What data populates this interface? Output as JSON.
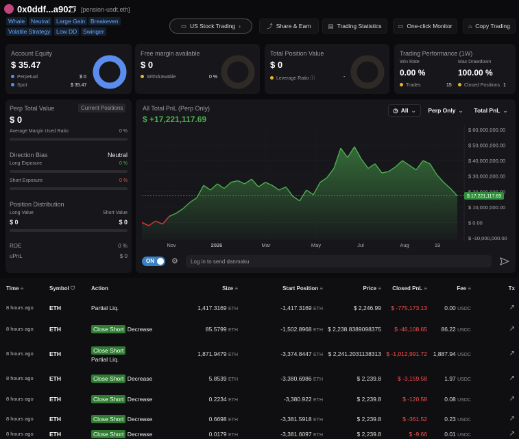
{
  "header": {
    "address": "0x0ddf...a902",
    "ens": "[pension-usdt.eth]",
    "tags": [
      "Whale",
      "Neutral",
      "Large Gain",
      "Breakeven",
      "Volatile Strategy",
      "Low DD",
      "Swinger"
    ]
  },
  "nav": [
    "US Stock Trading",
    "Share & Earn",
    "Trading Statistics",
    "One-click Monitor",
    "Copy Trading"
  ],
  "cards": {
    "equity": {
      "title": "Account Equity",
      "value": "$ 35.47",
      "rows": [
        {
          "label": "Perpetual",
          "value": "$ 0"
        },
        {
          "label": "Spot",
          "value": "$ 35.47"
        }
      ]
    },
    "margin": {
      "title": "Free margin available",
      "value": "$ 0",
      "rows": [
        {
          "label": "Withdrawable",
          "value": "0 %"
        }
      ]
    },
    "position": {
      "title": "Total Position Value",
      "value": "$ 0",
      "rows": [
        {
          "label": "Leverage Ratio",
          "value": "-"
        }
      ]
    },
    "performance": {
      "title": "Trading Performance (1W)",
      "win_rate_label": "Win Rate",
      "win_rate": "0.00 %",
      "drawdown_label": "Max Drawdown",
      "drawdown": "100.00 %",
      "trades_label": "Trades",
      "trades": "15",
      "closed_label": "Closed Positions",
      "closed": "1"
    }
  },
  "perp": {
    "title": "Perp Total Value",
    "button": "Current Positions",
    "value": "$ 0",
    "margin_label": "Average Margin Used Ratio",
    "margin_value": "0 %",
    "bias_label": "Direction Bias",
    "bias_value": "Neutral",
    "long_label": "Long Exposure",
    "long_value": "0 %",
    "short_label": "Short Exposure",
    "short_value": "0 %",
    "dist_label": "Position Distribution",
    "long_value_label": "Long Value",
    "short_value_label": "Short Value",
    "long_amount": "$ 0",
    "short_amount": "$ 0",
    "roe_label": "ROE",
    "roe_value": "0 %",
    "upnl_label": "uPnL",
    "upnl_value": "$ 0"
  },
  "chart_data": {
    "type": "line",
    "title": "All Total PnL (Perp Only)",
    "subtitle": "$ +17,221,117.69",
    "filters": [
      "All",
      "Perp Only",
      "Total PnL"
    ],
    "color": "#4caf50",
    "negative_color": "#e53935",
    "grid": true,
    "values": [
      0,
      -2000000,
      1000000,
      -1000000,
      4000000,
      6000000,
      9000000,
      13000000,
      16000000,
      24000000,
      21000000,
      25000000,
      22000000,
      26000000,
      27000000,
      25000000,
      28000000,
      23000000,
      26000000,
      24000000,
      21000000,
      23000000,
      17000000,
      14000000,
      21000000,
      18000000,
      26000000,
      29000000,
      35000000,
      48000000,
      42000000,
      49000000,
      41000000,
      35000000,
      38000000,
      32000000,
      33000000,
      36000000,
      40000000,
      37000000,
      34000000,
      40000000,
      38000000,
      31000000,
      26000000,
      22000000,
      17221117.69
    ],
    "xlim": [
      0,
      46
    ],
    "xticks": [
      {
        "value": 4.3,
        "label": "Nov"
      },
      {
        "value": 10.9,
        "label": "2026"
      },
      {
        "value": 18.1,
        "label": "Mar"
      },
      {
        "value": 25.4,
        "label": "May"
      },
      {
        "value": 31.9,
        "label": "Jul"
      },
      {
        "value": 38.3,
        "label": "Aug"
      },
      {
        "value": 43.1,
        "label": "19"
      }
    ],
    "ylim": [
      -10000000,
      60000000
    ],
    "yticks": [
      {
        "value": -10000000,
        "label": "$ -10,000,000.00"
      },
      {
        "value": 0,
        "label": "$ 0.00"
      },
      {
        "value": 10000000,
        "label": "$ 10,000,000.00"
      },
      {
        "value": 20000000,
        "label": "$ 20,000,000.00"
      },
      {
        "value": 30000000,
        "label": "$ 30,000,000.00"
      },
      {
        "value": 40000000,
        "label": "$ 40,000,000.00"
      },
      {
        "value": 50000000,
        "label": "$ 50,000,000.00"
      },
      {
        "value": 60000000,
        "label": "$ 60,000,000.00"
      }
    ],
    "marker": {
      "value": 17221117.69,
      "label": "$ 17,221,117.69"
    }
  },
  "danmaku": {
    "toggle": "ON",
    "placeholder": "Log in to send danmaku"
  },
  "table": {
    "columns": [
      "Time",
      "Symbol",
      "Action",
      "Size",
      "Start Position",
      "Price",
      "Closed PnL",
      "Fee",
      "Tx"
    ],
    "rows": [
      {
        "time": "8 hours ago",
        "symbol": "ETH",
        "action": {
          "text": "Partial Liq."
        },
        "size": "1,417.3169",
        "size_unit": "ETH",
        "start": "-1,417.3169",
        "start_unit": "ETH",
        "price": "$ 2,246.99",
        "pnl": "$ -775,173.13",
        "fee": "0.00",
        "fee_unit": "USDC"
      },
      {
        "time": "8 hours ago",
        "symbol": "ETH",
        "action": {
          "badge": "Close Short",
          "text": "Decrease"
        },
        "size": "85.5799",
        "size_unit": "ETH",
        "start": "-1,502.8968",
        "start_unit": "ETH",
        "price": "$ 2,238.8389098375",
        "pnl": "$ -46,108.65",
        "fee": "86.22",
        "fee_unit": "USDC"
      },
      {
        "time": "8 hours ago",
        "symbol": "ETH",
        "action": {
          "badge": "Close Short",
          "text": "Partial Liq."
        },
        "size": "1,871.9479",
        "size_unit": "ETH",
        "start": "-3,374.8447",
        "start_unit": "ETH",
        "price": "$ 2,241.2031138313",
        "pnl": "$ -1,012,991.72",
        "fee": "1,887.94",
        "fee_unit": "USDC"
      },
      {
        "time": "8 hours ago",
        "symbol": "ETH",
        "action": {
          "badge": "Close Short",
          "text": "Decrease"
        },
        "size": "5.8539",
        "size_unit": "ETH",
        "start": "-3,380.6986",
        "start_unit": "ETH",
        "price": "$ 2,239.8",
        "pnl": "$ -3,159.58",
        "fee": "1.97",
        "fee_unit": "USDC"
      },
      {
        "time": "8 hours ago",
        "symbol": "ETH",
        "action": {
          "badge": "Close Short",
          "text": "Decrease"
        },
        "size": "0.2234",
        "size_unit": "ETH",
        "start": "-3,380.922",
        "start_unit": "ETH",
        "price": "$ 2,239.8",
        "pnl": "$ -120.58",
        "fee": "0.08",
        "fee_unit": "USDC"
      },
      {
        "time": "8 hours ago",
        "symbol": "ETH",
        "action": {
          "badge": "Close Short",
          "text": "Decrease"
        },
        "size": "0.6698",
        "size_unit": "ETH",
        "start": "-3,381.5918",
        "start_unit": "ETH",
        "price": "$ 2,239.8",
        "pnl": "$ -361.52",
        "fee": "0.23",
        "fee_unit": "USDC"
      },
      {
        "time": "8 hours ago",
        "symbol": "ETH",
        "action": {
          "badge": "Close Short",
          "text": "Decrease"
        },
        "size": "0.0179",
        "size_unit": "ETH",
        "start": "-3,381.6097",
        "start_unit": "ETH",
        "price": "$ 2,239.8",
        "pnl": "$ -9.66",
        "fee": "0.01",
        "fee_unit": "USDC"
      }
    ]
  }
}
